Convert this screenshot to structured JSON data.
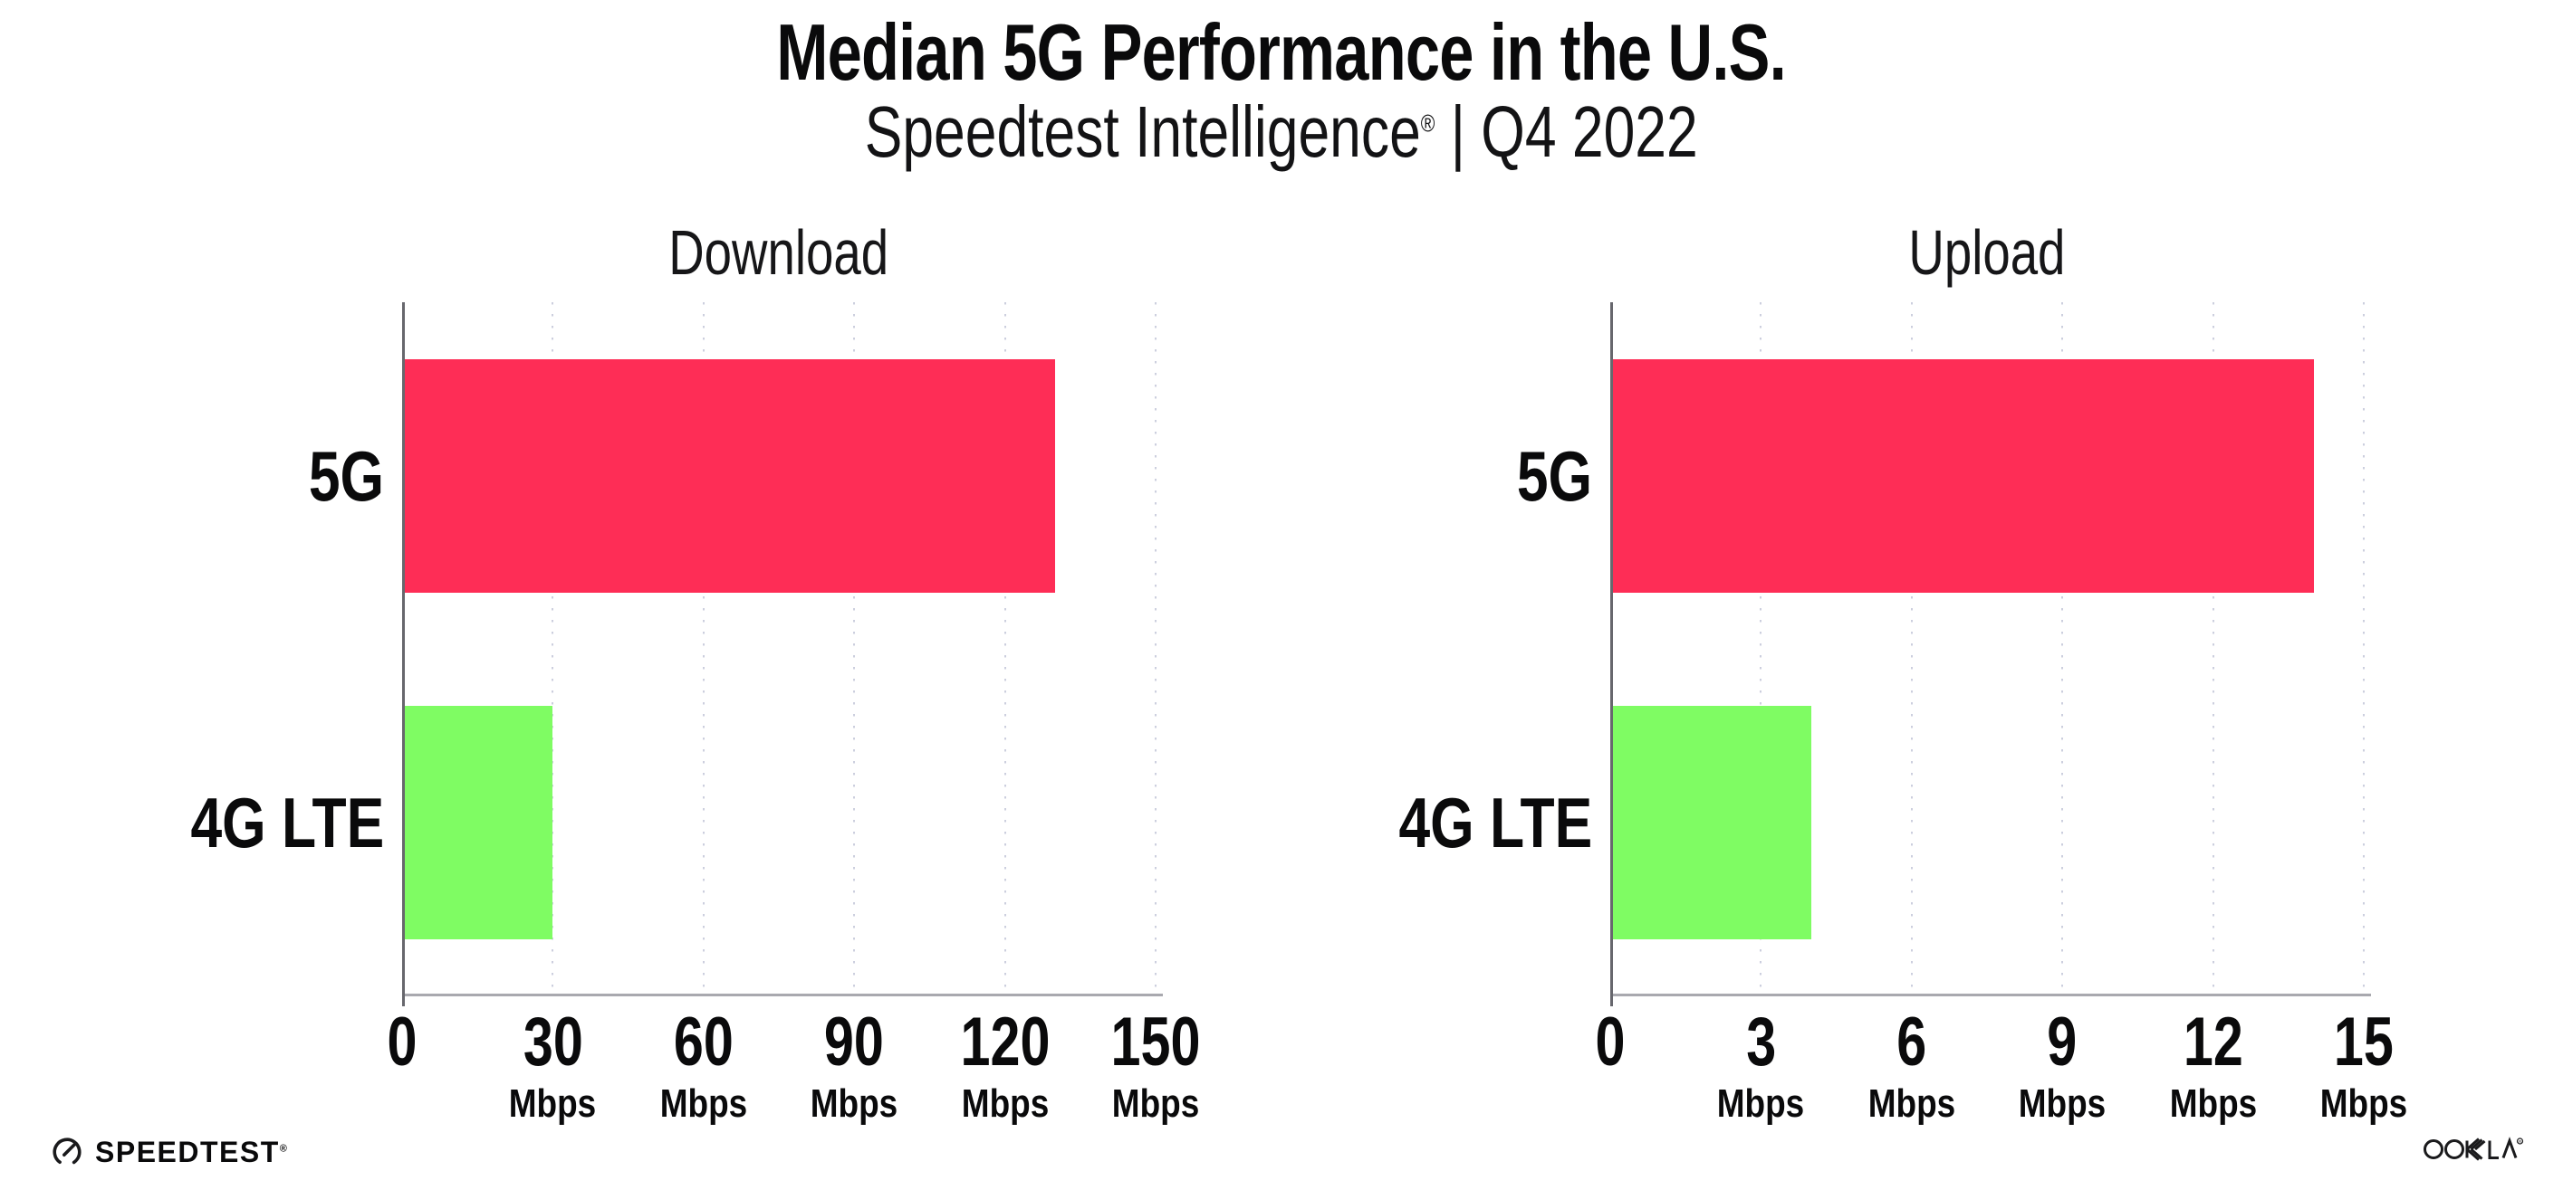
{
  "header": {
    "title": "Median 5G Performance in the U.S.",
    "subtitle_brand": "Speedtest Intelligence",
    "subtitle_reg": "®",
    "subtitle_rest": " | Q4 2022"
  },
  "chart_data": [
    {
      "type": "bar",
      "orientation": "horizontal",
      "title": "Download",
      "categories": [
        "5G",
        "4G LTE"
      ],
      "values": [
        130,
        30
      ],
      "unit": "Mbps",
      "xlim": [
        0,
        150
      ],
      "xticks": [
        0,
        30,
        60,
        90,
        120,
        150
      ],
      "bar_colors": [
        "#FE2D56",
        "#7FFC63"
      ],
      "grid": "dotted-vertical",
      "legend": "none"
    },
    {
      "type": "bar",
      "orientation": "horizontal",
      "title": "Upload",
      "categories": [
        "5G",
        "4G LTE"
      ],
      "values": [
        14,
        4
      ],
      "unit": "Mbps",
      "xlim": [
        0,
        15
      ],
      "xticks": [
        0,
        3,
        6,
        9,
        12,
        15
      ],
      "bar_colors": [
        "#FE2D56",
        "#7FFC63"
      ],
      "grid": "dotted-vertical",
      "legend": "none"
    }
  ],
  "footer": {
    "speedtest_label": "SPEEDTEST",
    "speedtest_reg": "®",
    "ookla_label": "OOKLA",
    "ookla_reg": "®"
  },
  "colors": {
    "bar_5g": "#FE2D56",
    "bar_4g_lte": "#7FFC63",
    "axis_line": "#A9A9AF",
    "spine": "#67676D",
    "gridline": "#DDDFEA",
    "text": "#0A0A0B",
    "background": "#FFFFFF"
  }
}
